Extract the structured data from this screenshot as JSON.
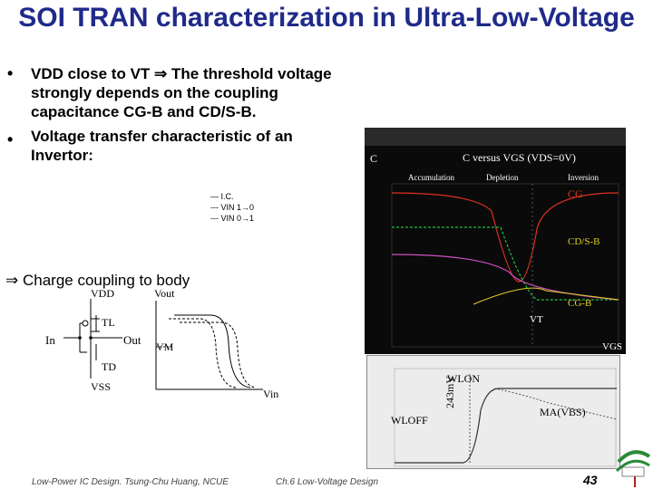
{
  "slide": {
    "title": "SOI TRAN characterization in Ultra-Low-Voltage",
    "bullets": [
      "VDD close to VT ⇒ The threshold voltage strongly depends on the coupling capacitance CG-B and CD/S-B.",
      "Voltage transfer characteristic of an Invertor:"
    ],
    "coupling_heading": "⇒ Charge coupling to body",
    "footer_left": "Low-Power IC Design. Tsung-Chu Huang, NCUE",
    "footer_center": "Ch.6 Low-Voltage Design",
    "page_number": "43"
  },
  "inverter": {
    "vdd": "VDD",
    "vss": "VSS",
    "in": "In",
    "out": "Out",
    "tl": "TL",
    "td": "TD",
    "vout": "Vout",
    "vm": "VM",
    "vin": "Vin",
    "legend": [
      "— I.C.",
      "--- VIN 1→0",
      "--- VIN 0→1"
    ]
  },
  "cv_plot": {
    "c_label": "C",
    "title": "C versus VGS (VDS=0V)",
    "regions": [
      "Accumulation",
      "Depletion",
      "Inversion"
    ],
    "curve_labels": [
      "CG",
      "CD/S-B",
      "CG-B"
    ],
    "vt": "VT",
    "vgs": "VGS",
    "colors": {
      "cg": "#e03020",
      "cdsb": "#d050c0",
      "cgb": "#20c040",
      "yellow": "#e0d020"
    }
  },
  "scope": {
    "wl_on": "WLON",
    "wl_off": "WLOFF",
    "delta": "243mV",
    "ma": "MA(VBS)"
  }
}
